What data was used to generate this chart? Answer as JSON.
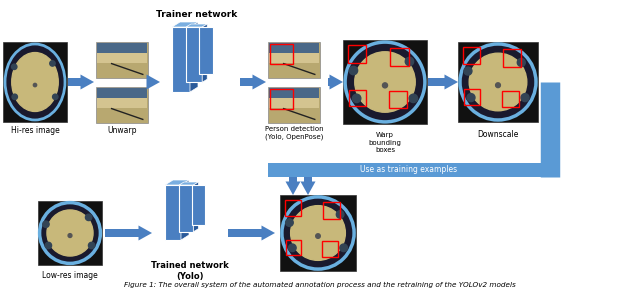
{
  "title": "Figure 1: The overall system of the automated annotation process and the retraining of the YOLOv2 models",
  "bg_color": "#ffffff",
  "arrow_color": "#4a7fc1",
  "text_color": "#000000",
  "top_row_network_label": "Trainer network",
  "feedback_label": "Use as training examples",
  "bottom_network_label": "Trained network\n(Yolo)",
  "figsize": [
    6.4,
    2.91
  ],
  "dpi": 100,
  "nn_color": "#4a7fc1",
  "nn_top_color": "#7aaee0",
  "nn_right_color": "#2a5a9a"
}
